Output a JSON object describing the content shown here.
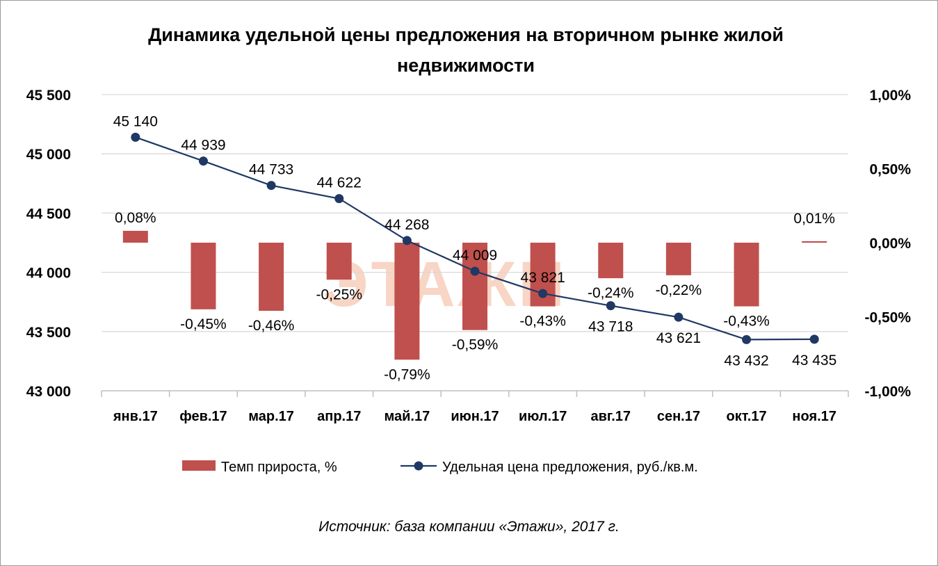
{
  "title_line1": "Динамика удельной цены предложения на вторичном рынке жилой",
  "title_line2": "недвижимости",
  "source": "Источник: база компании «Этажи», 2017 г.",
  "watermark": "ЭТАЖИ",
  "colors": {
    "bar": "#c0504d",
    "line": "#1f3864",
    "grid": "#d9d9d9",
    "watermark": "#f8d5c5"
  },
  "chart_data": {
    "type": "bar+line",
    "categories": [
      "янв.17",
      "фев.17",
      "мар.17",
      "апр.17",
      "май.17",
      "июн.17",
      "июл.17",
      "авг.17",
      "сен.17",
      "окт.17",
      "ноя.17"
    ],
    "series": [
      {
        "name": "Темп прироста, %",
        "type": "bar",
        "axis": "right",
        "values": [
          0.08,
          -0.45,
          -0.46,
          -0.25,
          -0.79,
          -0.59,
          -0.43,
          -0.24,
          -0.22,
          -0.43,
          0.01
        ],
        "labels": [
          "0,08%",
          "-0,45%",
          "-0,46%",
          "-0,25%",
          "-0,79%",
          "-0,59%",
          "-0,43%",
          "-0,24%",
          "-0,22%",
          "-0,43%",
          "0,01%"
        ]
      },
      {
        "name": "Удельная цена предложения, руб./кв.м.",
        "type": "line",
        "axis": "left",
        "values": [
          45140,
          44939,
          44733,
          44622,
          44268,
          44009,
          43821,
          43718,
          43621,
          43432,
          43435
        ],
        "labels": [
          "45 140",
          "44 939",
          "44 733",
          "44 622",
          "44 268",
          "44 009",
          "43 821",
          "43 718",
          "43 621",
          "43 432",
          "43 435"
        ]
      }
    ],
    "y_left": {
      "min": 43000,
      "max": 45500,
      "ticks": [
        "43 000",
        "43 500",
        "44 000",
        "44 500",
        "45 000",
        "45 500"
      ]
    },
    "y_right": {
      "min": -1.0,
      "max": 1.0,
      "ticks": [
        "-1,00%",
        "-0,50%",
        "0,00%",
        "0,50%",
        "1,00%"
      ]
    },
    "grid": true,
    "legend_position": "bottom"
  }
}
